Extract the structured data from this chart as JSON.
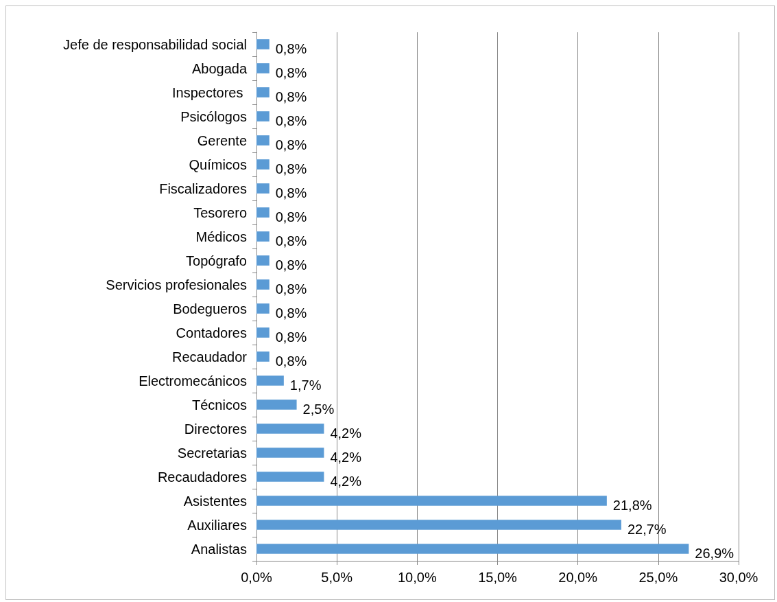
{
  "chart_data": {
    "type": "bar",
    "orientation": "horizontal",
    "categories": [
      "Jefe de responsabilidad social",
      "Abogada",
      "Inspectores ",
      "Psicólogos",
      "Gerente",
      "Químicos",
      "Fiscalizadores",
      "Tesorero",
      "Médicos",
      "Topógrafo",
      "Servicios profesionales",
      "Bodegueros",
      "Contadores",
      "Recaudador",
      "Electromecánicos",
      "Técnicos",
      "Directores",
      "Secretarias",
      "Recaudadores",
      "Asistentes",
      "Auxiliares",
      "Analistas"
    ],
    "values": [
      0.8,
      0.8,
      0.8,
      0.8,
      0.8,
      0.8,
      0.8,
      0.8,
      0.8,
      0.8,
      0.8,
      0.8,
      0.8,
      0.8,
      1.7,
      2.5,
      4.2,
      4.2,
      4.2,
      21.8,
      22.7,
      26.9
    ],
    "value_labels": [
      "0,8%",
      "0,8%",
      "0,8%",
      "0,8%",
      "0,8%",
      "0,8%",
      "0,8%",
      "0,8%",
      "0,8%",
      "0,8%",
      "0,8%",
      "0,8%",
      "0,8%",
      "0,8%",
      "1,7%",
      "2,5%",
      "4,2%",
      "4,2%",
      "4,2%",
      "21,8%",
      "22,7%",
      "26,9%"
    ],
    "color": "#5b9bd5",
    "xlim": [
      0,
      30
    ],
    "xticks": [
      {
        "value": 0,
        "label": "0,0%"
      },
      {
        "value": 5,
        "label": "5,0%"
      },
      {
        "value": 10,
        "label": "10,0%"
      },
      {
        "value": 15,
        "label": "15,0%"
      },
      {
        "value": 20,
        "label": "20,0%"
      },
      {
        "value": 25,
        "label": "25,0%"
      },
      {
        "value": 30,
        "label": "30,0%"
      }
    ],
    "grid": "x"
  }
}
